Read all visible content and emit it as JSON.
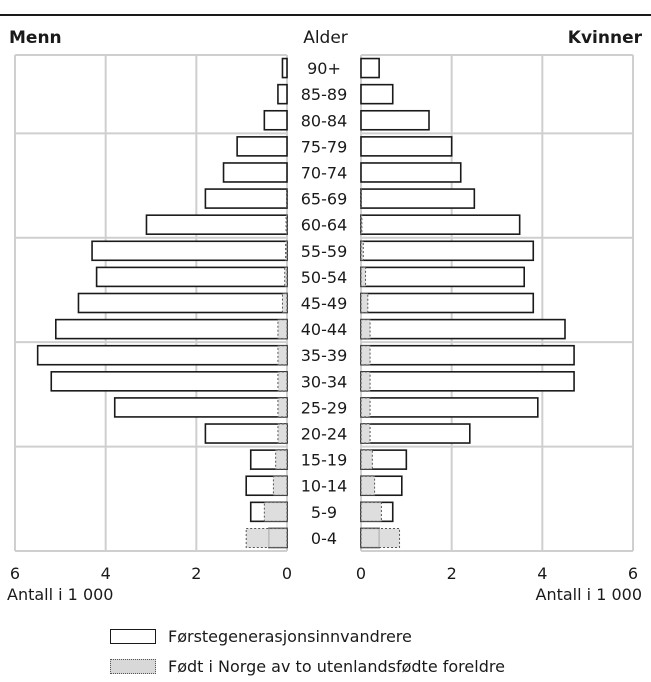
{
  "chart_data": {
    "type": "bar",
    "orientation": "horizontal",
    "subtype": "population-pyramid",
    "left_title": "Menn",
    "right_title": "Kvinner",
    "center_title": "Alder",
    "xlabel_left": "Antall i 1 000",
    "xlabel_right": "Antall i 1 000",
    "xlim": [
      0,
      6
    ],
    "xticks": [
      6,
      4,
      2,
      0
    ],
    "xticks_right": [
      0,
      2,
      4,
      6
    ],
    "grid": true,
    "legend_position": "bottom",
    "categories": [
      "0-4",
      "5-9",
      "10-14",
      "15-19",
      "20-24",
      "25-29",
      "30-34",
      "35-39",
      "40-44",
      "45-49",
      "50-54",
      "55-59",
      "60-64",
      "65-69",
      "70-74",
      "75-79",
      "80-84",
      "85-89",
      "90+"
    ],
    "series": [
      {
        "name": "Førstegenerasjonsinnvandrere",
        "color": "#ffffff",
        "men": [
          0.4,
          0.8,
          0.9,
          0.8,
          1.8,
          3.8,
          5.2,
          5.5,
          5.1,
          4.6,
          4.2,
          4.3,
          3.1,
          1.8,
          1.4,
          1.1,
          0.5,
          0.2,
          0.1
        ],
        "women": [
          0.4,
          0.7,
          0.9,
          1.0,
          2.4,
          3.9,
          4.7,
          4.7,
          4.5,
          3.8,
          3.6,
          3.8,
          3.5,
          2.5,
          2.2,
          2.0,
          1.5,
          0.7,
          0.4
        ]
      },
      {
        "name": "Født i Norge av to utenlandsfødte foreldre",
        "color": "#d8d8d8",
        "men": [
          0.9,
          0.5,
          0.3,
          0.25,
          0.2,
          0.2,
          0.2,
          0.2,
          0.2,
          0.1,
          0.05,
          0.03,
          0.02,
          0.01,
          0,
          0,
          0,
          0,
          0
        ],
        "women": [
          0.85,
          0.45,
          0.3,
          0.25,
          0.2,
          0.2,
          0.2,
          0.2,
          0.2,
          0.15,
          0.1,
          0.05,
          0.02,
          0.01,
          0,
          0,
          0,
          0,
          0
        ]
      }
    ]
  },
  "legend": {
    "items": [
      {
        "label": "Førstegenerasjonsinnvandrere"
      },
      {
        "label": "Født i Norge av to utenlandsfødte foreldre"
      }
    ]
  }
}
